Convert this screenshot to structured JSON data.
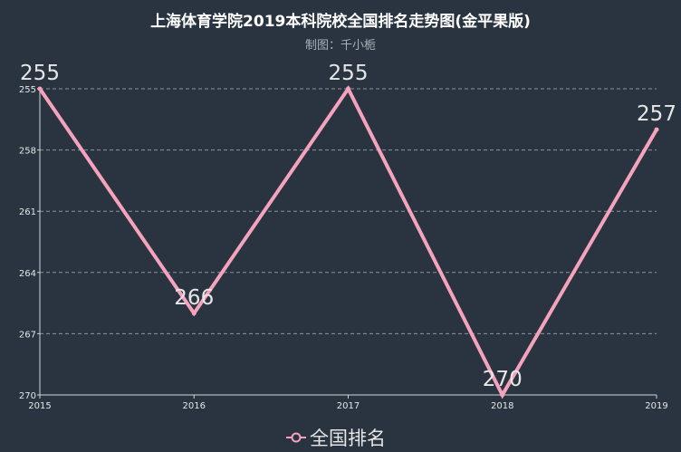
{
  "chart_data": {
    "type": "line",
    "title": "上海体育学院2019本科院校全国排名走势图(金平果版)",
    "subtitle": "制图：千小栀",
    "x": [
      "2015",
      "2016",
      "2017",
      "2018",
      "2019"
    ],
    "series": [
      {
        "name": "全国排名",
        "values": [
          255,
          266,
          255,
          270,
          257
        ]
      }
    ],
    "data_labels": [
      "255",
      "266",
      "255",
      "270",
      "257"
    ],
    "y_ticks": [
      255,
      258,
      261,
      264,
      267,
      270
    ],
    "ylim": [
      255,
      270
    ],
    "y_inverted": true,
    "grid": true,
    "legend_position": "bottom-center"
  },
  "colors": {
    "background": "#2a3440",
    "line": "#f5a3bd",
    "title": "#ffffff",
    "subtitle": "#aab0b8",
    "axis": "#cfd4da",
    "grid": "#8a939d",
    "text": "#e6e6e6"
  }
}
